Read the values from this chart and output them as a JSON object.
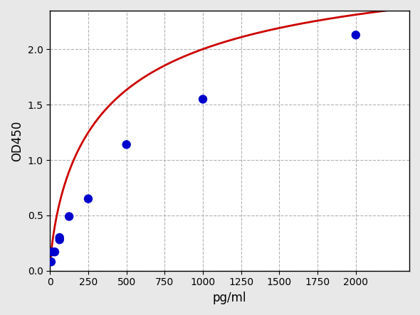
{
  "x_scatter": [
    7.8,
    15.6,
    31.2,
    62.5,
    62.5,
    125,
    250,
    500,
    1000,
    2000
  ],
  "y_scatter": [
    0.08,
    0.17,
    0.17,
    0.28,
    0.3,
    0.49,
    0.65,
    1.14,
    1.55,
    2.13
  ],
  "dot_color": "#0000cc",
  "curve_color": "#cc0000",
  "xlabel": "pg/ml",
  "ylabel": "OD450",
  "xlim": [
    0,
    2350
  ],
  "ylim": [
    0.0,
    2.35
  ],
  "xticks": [
    0,
    250,
    500,
    750,
    1000,
    1250,
    1500,
    1750,
    2000
  ],
  "yticks": [
    0.0,
    0.5,
    1.0,
    1.5,
    2.0
  ],
  "background_color": "#e8e8e8",
  "plot_bg_color": "#ffffff",
  "grid_color": "#aaaaaa",
  "dot_size": 80,
  "curve_linewidth": 2.0,
  "xlabel_fontsize": 12,
  "ylabel_fontsize": 12
}
